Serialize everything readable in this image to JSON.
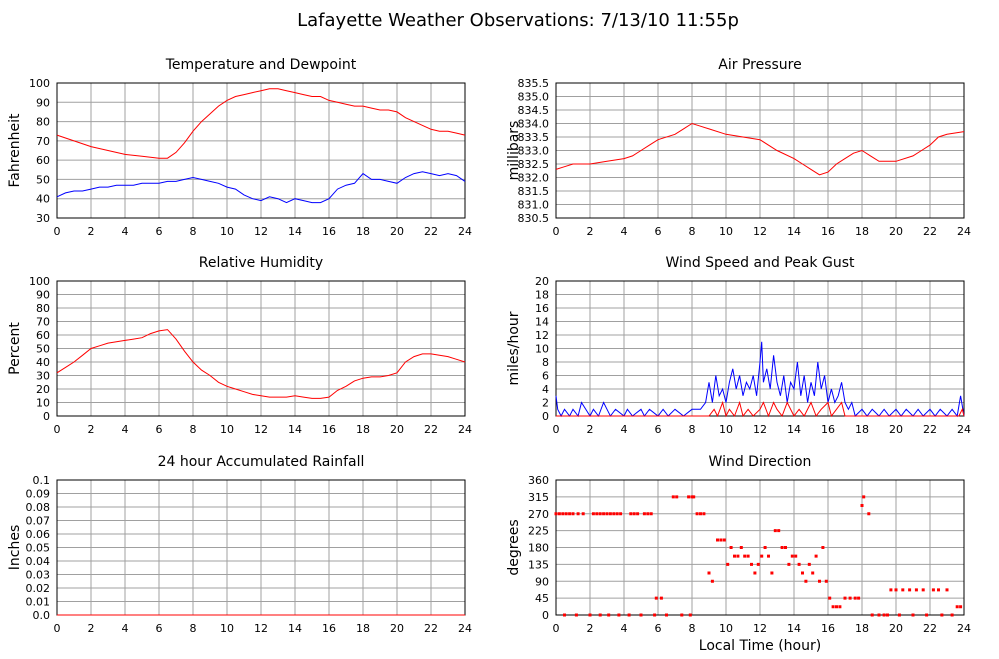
{
  "page": {
    "title": "Lafayette Weather Observations: 7/13/10 11:55p",
    "x_axis_label": "Local Time (hour)"
  },
  "colors": {
    "red": "#ff0000",
    "blue": "#0000ff",
    "grid": "#a0a0a0"
  },
  "chart_data": [
    {
      "id": "temp",
      "type": "line",
      "title": "Temperature and Dewpoint",
      "ylabel": "Fahrenheit",
      "xlabel": "",
      "xlim": [
        0,
        24
      ],
      "ylim": [
        30,
        100
      ],
      "yticks": [
        "30",
        "40",
        "50",
        "60",
        "70",
        "80",
        "90",
        "100"
      ],
      "xticks": [
        "0",
        "2",
        "4",
        "6",
        "8",
        "10",
        "12",
        "14",
        "16",
        "18",
        "20",
        "22",
        "24"
      ],
      "grid": true,
      "series": [
        {
          "color": "red",
          "x": [
            0,
            1,
            2,
            3,
            4,
            5,
            6,
            6.5,
            7,
            7.5,
            8,
            8.5,
            9,
            9.5,
            10,
            10.5,
            11,
            11.5,
            12,
            12.5,
            13,
            13.5,
            14,
            14.5,
            15,
            15.5,
            16,
            16.5,
            17,
            17.5,
            18,
            18.5,
            19,
            19.5,
            20,
            20.5,
            21,
            21.5,
            22,
            22.5,
            23,
            23.5,
            24
          ],
          "y": [
            73,
            70,
            67,
            65,
            63,
            62,
            61,
            61,
            64,
            69,
            75,
            80,
            84,
            88,
            91,
            93,
            94,
            95,
            96,
            97,
            97,
            96,
            95,
            94,
            93,
            93,
            91,
            90,
            89,
            88,
            88,
            87,
            86,
            86,
            85,
            82,
            80,
            78,
            76,
            75,
            75,
            74,
            73
          ]
        },
        {
          "color": "blue",
          "x": [
            0,
            0.5,
            1,
            1.5,
            2,
            2.5,
            3,
            3.5,
            4,
            4.5,
            5,
            5.5,
            6,
            6.5,
            7,
            7.5,
            8,
            8.5,
            9,
            9.5,
            10,
            10.5,
            11,
            11.5,
            12,
            12.5,
            13,
            13.5,
            14,
            14.5,
            15,
            15.5,
            16,
            16.5,
            17,
            17.5,
            18,
            18.5,
            19,
            19.5,
            20,
            20.5,
            21,
            21.5,
            22,
            22.5,
            23,
            23.5,
            24
          ],
          "y": [
            41,
            43,
            44,
            44,
            45,
            46,
            46,
            47,
            47,
            47,
            48,
            48,
            48,
            49,
            49,
            50,
            51,
            50,
            49,
            48,
            46,
            45,
            42,
            40,
            39,
            41,
            40,
            38,
            40,
            39,
            38,
            38,
            40,
            45,
            47,
            48,
            53,
            50,
            50,
            49,
            48,
            51,
            53,
            54,
            53,
            52,
            53,
            52,
            49
          ]
        }
      ]
    },
    {
      "id": "pressure",
      "type": "line",
      "title": "Air Pressure",
      "ylabel": "millibars",
      "xlabel": "",
      "xlim": [
        0,
        24
      ],
      "ylim": [
        830.5,
        835.5
      ],
      "yticks": [
        "830.5",
        "831.0",
        "831.5",
        "832.0",
        "832.5",
        "833.0",
        "833.5",
        "834.0",
        "834.5",
        "835.0",
        "835.5"
      ],
      "xticks": [
        "0",
        "2",
        "4",
        "6",
        "8",
        "10",
        "12",
        "14",
        "16",
        "18",
        "20",
        "22",
        "24"
      ],
      "grid": true,
      "series": [
        {
          "color": "red",
          "x": [
            0,
            0.5,
            1,
            2,
            3,
            4,
            4.5,
            5,
            5.5,
            6,
            7,
            7.5,
            8,
            8.5,
            9,
            10,
            11,
            12,
            13,
            14,
            14.5,
            15,
            15.5,
            16,
            16.5,
            17,
            17.5,
            18,
            18.5,
            19,
            20,
            21,
            21.5,
            22,
            22.5,
            23,
            24
          ],
          "y": [
            832.3,
            832.4,
            832.5,
            832.5,
            832.6,
            832.7,
            832.8,
            833.0,
            833.2,
            833.4,
            833.6,
            833.8,
            834.0,
            833.9,
            833.8,
            833.6,
            833.5,
            833.4,
            833.0,
            832.7,
            832.5,
            832.3,
            832.1,
            832.2,
            832.5,
            832.7,
            832.9,
            833.0,
            832.8,
            832.6,
            832.6,
            832.8,
            833.0,
            833.2,
            833.5,
            833.6,
            833.7
          ]
        }
      ]
    },
    {
      "id": "humidity",
      "type": "line",
      "title": "Relative Humidity",
      "ylabel": "Percent",
      "xlabel": "",
      "xlim": [
        0,
        24
      ],
      "ylim": [
        0,
        100
      ],
      "yticks": [
        "0",
        "10",
        "20",
        "30",
        "40",
        "50",
        "60",
        "70",
        "80",
        "90",
        "100"
      ],
      "xticks": [
        "0",
        "2",
        "4",
        "6",
        "8",
        "10",
        "12",
        "14",
        "16",
        "18",
        "20",
        "22",
        "24"
      ],
      "grid": true,
      "series": [
        {
          "color": "red",
          "x": [
            0,
            0.5,
            1,
            1.5,
            2,
            2.5,
            3,
            3.5,
            4,
            4.5,
            5,
            5.5,
            6,
            6.5,
            7,
            7.5,
            8,
            8.5,
            9,
            9.5,
            10,
            10.5,
            11,
            11.5,
            12,
            12.5,
            13,
            13.5,
            14,
            14.5,
            15,
            15.5,
            16,
            16.5,
            17,
            17.5,
            18,
            18.5,
            19,
            19.5,
            20,
            20.5,
            21,
            21.5,
            22,
            22.5,
            23,
            23.5,
            24
          ],
          "y": [
            32,
            36,
            40,
            45,
            50,
            52,
            54,
            55,
            56,
            57,
            58,
            61,
            63,
            64,
            57,
            48,
            40,
            34,
            30,
            25,
            22,
            20,
            18,
            16,
            15,
            14,
            14,
            14,
            15,
            14,
            13,
            13,
            14,
            19,
            22,
            26,
            28,
            29,
            29,
            30,
            32,
            40,
            44,
            46,
            46,
            45,
            44,
            42,
            40
          ]
        }
      ]
    },
    {
      "id": "wind",
      "type": "line",
      "title": "Wind Speed and Peak Gust",
      "ylabel": "miles/hour",
      "xlabel": "",
      "xlim": [
        0,
        24
      ],
      "ylim": [
        0,
        20
      ],
      "yticks": [
        "0",
        "2",
        "4",
        "6",
        "8",
        "10",
        "12",
        "14",
        "16",
        "18",
        "20"
      ],
      "xticks": [
        "0",
        "2",
        "4",
        "6",
        "8",
        "10",
        "12",
        "14",
        "16",
        "18",
        "20",
        "22",
        "24"
      ],
      "grid": true,
      "series": [
        {
          "color": "blue",
          "x": [
            0,
            0.1,
            0.3,
            0.5,
            0.8,
            1,
            1.3,
            1.5,
            2,
            2.2,
            2.5,
            2.8,
            3,
            3.2,
            3.5,
            4,
            4.2,
            4.5,
            5,
            5.2,
            5.5,
            6,
            6.3,
            6.6,
            7,
            7.5,
            8,
            8.5,
            8.8,
            9,
            9.2,
            9.4,
            9.6,
            9.8,
            10,
            10.2,
            10.4,
            10.6,
            10.8,
            11,
            11.2,
            11.4,
            11.6,
            11.8,
            12,
            12.1,
            12.2,
            12.4,
            12.6,
            12.8,
            13,
            13.2,
            13.4,
            13.6,
            13.8,
            14,
            14.2,
            14.4,
            14.6,
            14.8,
            15,
            15.2,
            15.4,
            15.6,
            15.8,
            16,
            16.2,
            16.4,
            16.6,
            16.8,
            17,
            17.2,
            17.4,
            17.6,
            18,
            18.3,
            18.6,
            19,
            19.3,
            19.6,
            20,
            20.3,
            20.6,
            21,
            21.3,
            21.6,
            22,
            22.3,
            22.6,
            23,
            23.3,
            23.6,
            23.8,
            24
          ],
          "y": [
            3,
            1,
            0,
            1,
            0,
            1,
            0,
            2,
            0,
            1,
            0,
            2,
            1,
            0,
            1,
            0,
            1,
            0,
            1,
            0,
            1,
            0,
            1,
            0,
            1,
            0,
            1,
            1,
            2,
            5,
            2,
            6,
            3,
            4,
            2,
            5,
            7,
            4,
            6,
            3,
            5,
            4,
            6,
            3,
            8,
            11,
            5,
            7,
            4,
            9,
            5,
            3,
            6,
            2,
            5,
            4,
            8,
            3,
            6,
            2,
            5,
            3,
            8,
            4,
            6,
            2,
            4,
            2,
            3,
            5,
            2,
            1,
            2,
            0,
            1,
            0,
            1,
            0,
            1,
            0,
            1,
            0,
            1,
            0,
            1,
            0,
            1,
            0,
            1,
            0,
            1,
            0,
            3,
            0
          ]
        },
        {
          "color": "red",
          "x": [
            0,
            9,
            9.3,
            9.5,
            9.8,
            10,
            10.2,
            10.5,
            10.8,
            11,
            11.3,
            11.6,
            12,
            12.2,
            12.5,
            12.8,
            13,
            13.3,
            13.6,
            14,
            14.3,
            14.6,
            15,
            15.3,
            15.6,
            16,
            16.2,
            16.5,
            16.8,
            17,
            17.3,
            23.7,
            23.9,
            24
          ],
          "y": [
            0,
            0,
            1,
            0,
            2,
            0,
            1,
            0,
            2,
            0,
            1,
            0,
            1,
            2,
            0,
            2,
            1,
            0,
            2,
            0,
            1,
            0,
            2,
            0,
            1,
            2,
            0,
            1,
            2,
            0,
            0,
            0,
            1,
            0
          ]
        }
      ]
    },
    {
      "id": "rain",
      "type": "line",
      "title": "24 hour Accumulated Rainfall",
      "ylabel": "Inches",
      "xlabel": "",
      "xlim": [
        0,
        24
      ],
      "ylim": [
        0,
        0.1
      ],
      "yticks": [
        "0.0",
        "0.01",
        "0.02",
        "0.03",
        "0.04",
        "0.05",
        "0.06",
        "0.07",
        "0.08",
        "0.09",
        "0.1"
      ],
      "xticks": [
        "0",
        "2",
        "4",
        "6",
        "8",
        "10",
        "12",
        "14",
        "16",
        "18",
        "20",
        "22",
        "24"
      ],
      "grid": true,
      "series": [
        {
          "color": "red",
          "x": [
            0,
            24
          ],
          "y": [
            0,
            0
          ]
        }
      ]
    },
    {
      "id": "direction",
      "type": "scatter",
      "title": "Wind Direction",
      "ylabel": "degrees",
      "xlabel": "Local Time (hour)",
      "xlim": [
        0,
        24
      ],
      "ylim": [
        0,
        360
      ],
      "yticks": [
        "0",
        "45",
        "90",
        "135",
        "180",
        "225",
        "270",
        "315",
        "360"
      ],
      "xticks": [
        "0",
        "2",
        "4",
        "6",
        "8",
        "10",
        "12",
        "14",
        "16",
        "18",
        "20",
        "22",
        "24"
      ],
      "grid": true,
      "series": [
        {
          "color": "red",
          "x": [
            0,
            0.2,
            0.4,
            0.6,
            0.8,
            1,
            1.3,
            1.6,
            2.2,
            2.4,
            2.6,
            2.8,
            3,
            3.2,
            3.4,
            3.6,
            3.8,
            4.4,
            4.6,
            4.8,
            5.2,
            5.4,
            5.6,
            5.9,
            6.2,
            6.9,
            7.1,
            7.8,
            8,
            8.1,
            8.3,
            8.5,
            8.7,
            9,
            9.2,
            9.5,
            9.7,
            9.9,
            10.1,
            10.3,
            10.5,
            10.7,
            10.9,
            11.1,
            11.3,
            11.5,
            11.7,
            11.9,
            12.1,
            12.3,
            12.5,
            12.7,
            12.9,
            13.1,
            13.3,
            13.5,
            13.7,
            13.9,
            14.1,
            14.3,
            14.5,
            14.7,
            14.9,
            15.1,
            15.3,
            15.5,
            15.7,
            15.9,
            16.1,
            16.3,
            16.5,
            16.7,
            17,
            17.3,
            17.6,
            17.8,
            18,
            18.1,
            18.4,
            19,
            19.3,
            19.7,
            20,
            20.4,
            20.8,
            21.2,
            21.6,
            22.2,
            22.5,
            23,
            23.6,
            23.8,
            0.5,
            1.2,
            2,
            2.6,
            3.1,
            3.7,
            4.3,
            5,
            5.8,
            6.5,
            7.4,
            7.9,
            18.6,
            19.5,
            20.2,
            21,
            21.8,
            22.7,
            23.3
          ],
          "y": [
            270,
            270,
            270,
            270,
            270,
            270,
            270,
            270,
            270,
            270,
            270,
            270,
            270,
            270,
            270,
            270,
            270,
            270,
            270,
            270,
            270,
            270,
            270,
            45,
            45,
            315,
            315,
            315,
            315,
            315,
            270,
            270,
            270,
            112,
            90,
            200,
            200,
            200,
            135,
            180,
            157,
            157,
            180,
            157,
            157,
            135,
            112,
            135,
            157,
            180,
            157,
            112,
            225,
            225,
            180,
            180,
            135,
            157,
            157,
            135,
            112,
            90,
            135,
            112,
            157,
            90,
            180,
            90,
            45,
            22,
            22,
            22,
            45,
            45,
            45,
            45,
            292,
            315,
            270,
            0,
            0,
            67,
            67,
            67,
            67,
            67,
            67,
            67,
            67,
            67,
            22,
            22,
            0,
            0,
            0,
            0,
            0,
            0,
            0,
            0,
            0,
            0,
            0,
            0,
            0,
            0,
            0,
            0,
            0,
            0,
            0
          ]
        }
      ]
    }
  ]
}
